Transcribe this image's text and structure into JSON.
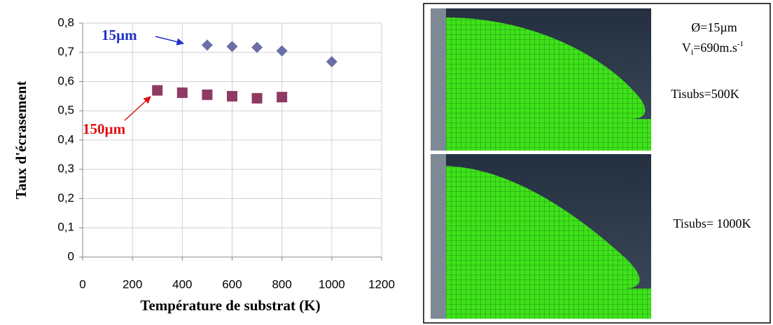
{
  "chart_data": {
    "type": "scatter",
    "xlabel": "Température de substrat (K)",
    "ylabel": "Taux d'écrasement",
    "xlim": [
      0,
      1200
    ],
    "xticks": [
      0,
      200,
      400,
      600,
      800,
      1000,
      1200
    ],
    "ylim": [
      0,
      0.8
    ],
    "yticks": [
      0,
      {
        "value": 0.1,
        "label": "0,1"
      },
      {
        "value": 0.2,
        "label": "0,2"
      },
      {
        "value": 0.3,
        "label": "0,3"
      },
      {
        "value": 0.4,
        "label": "0,4"
      },
      {
        "value": 0.5,
        "label": "0,5"
      },
      {
        "value": 0.6,
        "label": "0,6"
      },
      {
        "value": 0.7,
        "label": "0,7"
      },
      {
        "value": 0.8,
        "label": "0,8"
      }
    ],
    "grid": true,
    "series": [
      {
        "name": "15µm",
        "color": "#6a6fa6",
        "label_color": "#1f2fc8",
        "marker": "diamond",
        "x": [
          500,
          600,
          700,
          800,
          1000
        ],
        "values": [
          0.725,
          0.72,
          0.717,
          0.705,
          0.668
        ]
      },
      {
        "name": "150µm",
        "color": "#8e3a63",
        "label_color": "#e01010",
        "marker": "square",
        "x": [
          300,
          400,
          500,
          600,
          700,
          800
        ],
        "values": [
          0.57,
          0.562,
          0.555,
          0.55,
          0.543,
          0.547
        ]
      }
    ]
  },
  "figure_panel": {
    "diameter": "Ø=15µm",
    "velocity": {
      "symbol": "V",
      "subscript": "i",
      "value": "=690m.s",
      "superscript": "-1"
    },
    "cases": [
      "Tisubs=500K",
      "Tisubs= 1000K"
    ]
  }
}
